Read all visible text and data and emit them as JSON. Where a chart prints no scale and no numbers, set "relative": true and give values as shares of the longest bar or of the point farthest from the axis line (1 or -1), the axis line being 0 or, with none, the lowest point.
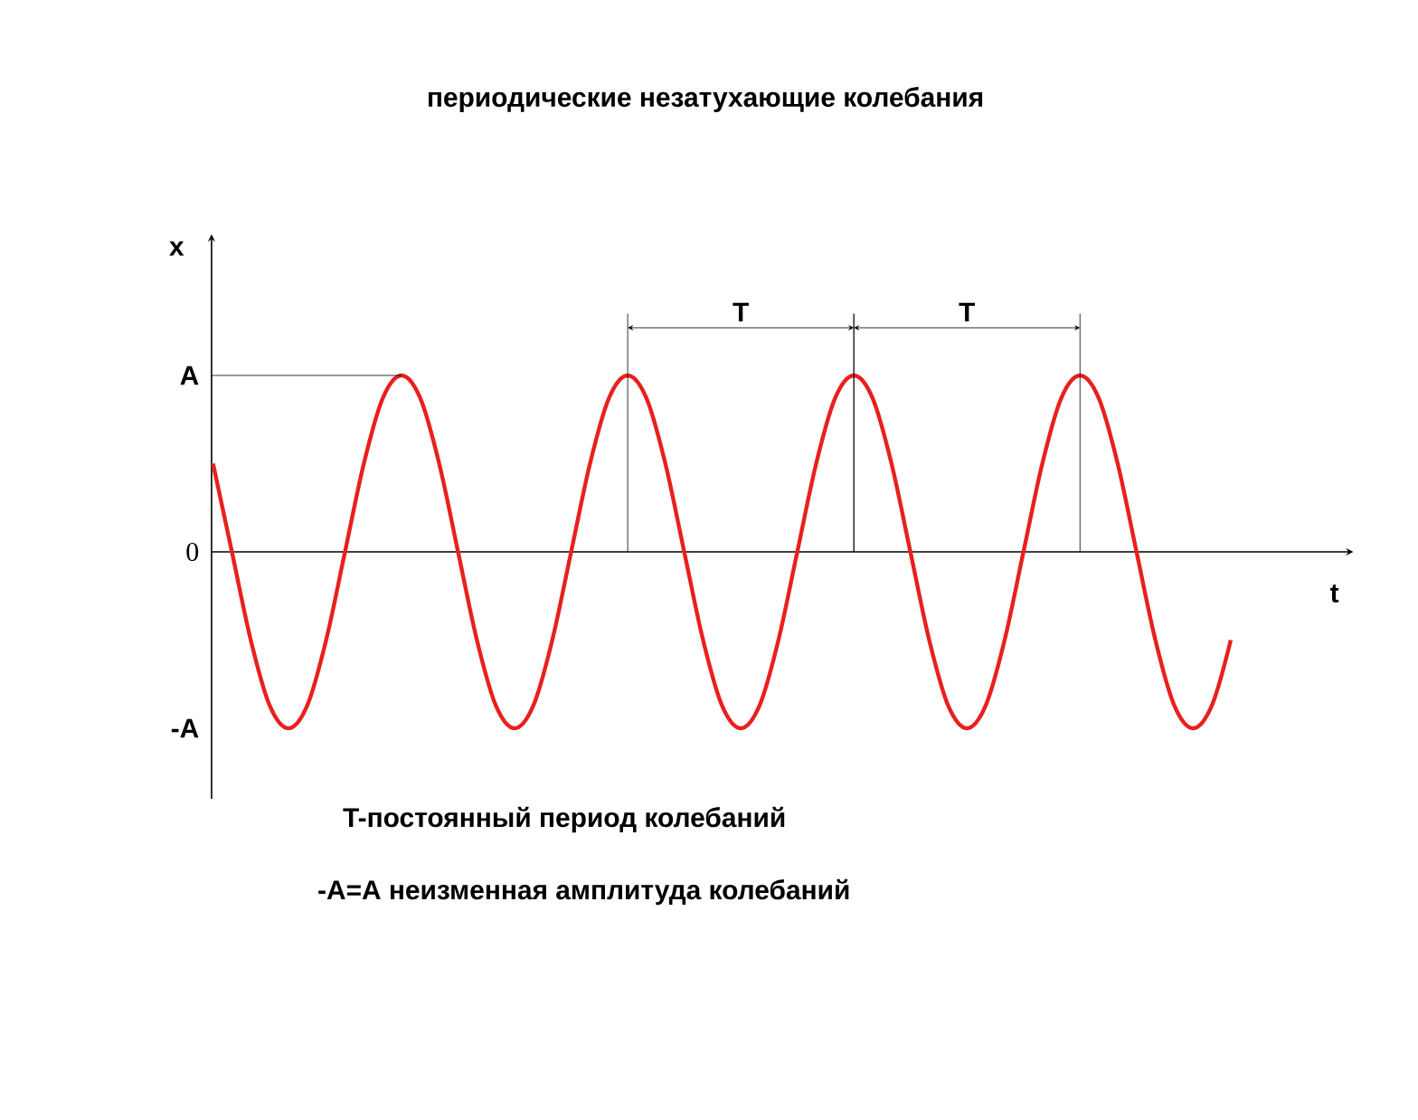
{
  "chart_data": {
    "type": "line",
    "title": "периодические незатухающие колебания",
    "xlabel": "t",
    "ylabel": "x",
    "relative": true,
    "categories": [
      null,
      null,
      null,
      null,
      null,
      null,
      null,
      null,
      null,
      null,
      null,
      null,
      null,
      null,
      null,
      null,
      null,
      null,
      null,
      null,
      null,
      null,
      null,
      null,
      null,
      null,
      null,
      null,
      null,
      null,
      null,
      null,
      null,
      null,
      null,
      null,
      null,
      null,
      null,
      null,
      null,
      null,
      null,
      null,
      null,
      null,
      null,
      null,
      null,
      null,
      null,
      null,
      null,
      null,
      null
    ],
    "series": [
      {
        "color": "#e8201e",
        "values": [
          0.5,
          0,
          -0.5,
          -0.87,
          -1,
          -0.87,
          -0.5,
          0,
          0.5,
          0.87,
          1,
          0.87,
          0.5,
          0,
          -0.5,
          -0.87,
          -1,
          -0.87,
          -0.5,
          0,
          0.5,
          0.87,
          1,
          0.87,
          0.5,
          0,
          -0.5,
          -0.87,
          -1,
          -0.87,
          -0.5,
          0,
          0.5,
          0.87,
          1,
          0.87,
          0.5,
          0,
          -0.5,
          -0.87,
          -1,
          -0.87,
          -0.5,
          0,
          0.5,
          0.87,
          1,
          0.87,
          0.5,
          0,
          -0.5,
          -0.87,
          -1,
          -0.87,
          -0.5
        ]
      }
    ],
    "marker": "none",
    "line_style": "solid",
    "annotations": [
      "T-постоянный период колебаний",
      "-A=A неизменная амплитуда колебаний",
      "T",
      "T",
      "A",
      "0",
      "-A"
    ]
  }
}
